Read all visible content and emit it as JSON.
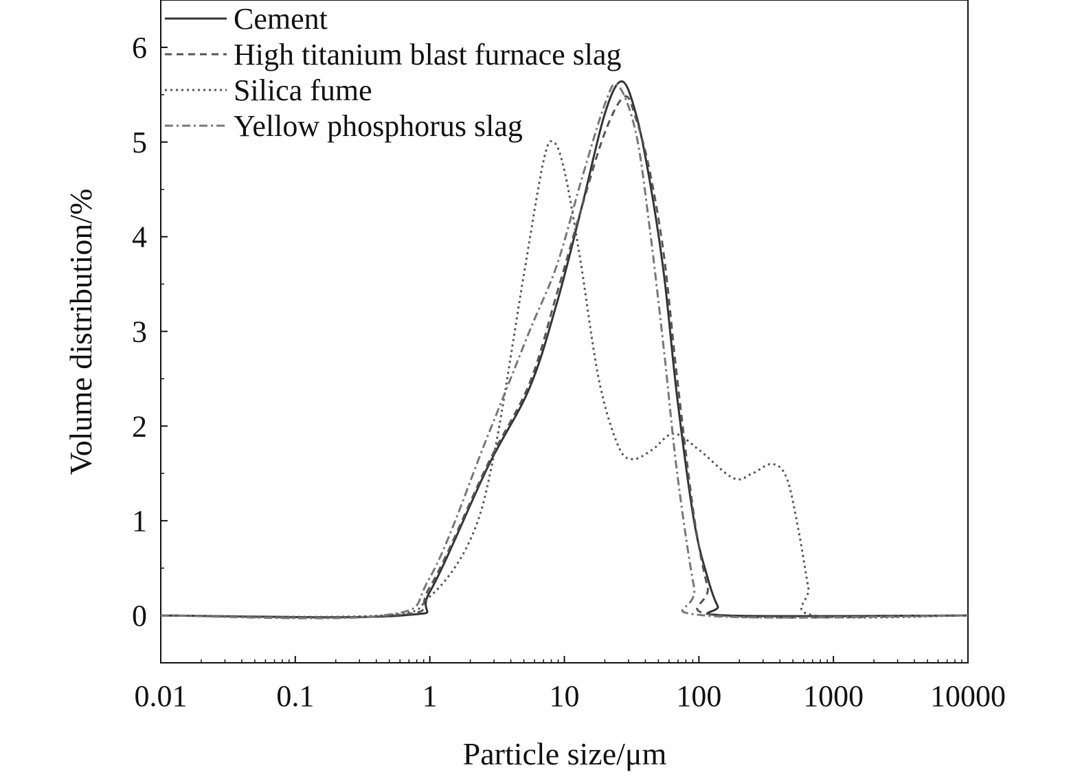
{
  "chart_data": {
    "type": "line",
    "title": "",
    "xlabel": "Particle size/μm",
    "ylabel": "Volume distribution/%",
    "xscale": "log",
    "xlim": [
      0.01,
      10000
    ],
    "ylim": [
      -0.5,
      6.5
    ],
    "xticks": [
      0.01,
      0.1,
      1,
      10,
      100,
      1000,
      10000
    ],
    "xtick_labels": [
      "0.01",
      "0.1",
      "1",
      "10",
      "100",
      "1000",
      "10000"
    ],
    "yticks": [
      0,
      1,
      2,
      3,
      4,
      5,
      6
    ],
    "ytick_labels": [
      "0",
      "1",
      "2",
      "3",
      "4",
      "5",
      "6"
    ],
    "grid": false,
    "legend_position": "top-left",
    "series": [
      {
        "name": "Cement",
        "style": "solid",
        "color": "#333333",
        "x": [
          0.01,
          0.62,
          1,
          2.7,
          5.5,
          8.8,
          13.4,
          20,
          26.7,
          34,
          43,
          55,
          69,
          92,
          116,
          138,
          165,
          10000
        ],
        "y": [
          0,
          0,
          0.25,
          1.57,
          2.4,
          3.3,
          4.3,
          5.3,
          5.64,
          5.3,
          4.6,
          3.6,
          2.3,
          1.0,
          0.4,
          0.1,
          0,
          0
        ]
      },
      {
        "name": "High titanium blast furnace slag",
        "style": "dashed",
        "color": "#555555",
        "x": [
          0.01,
          0.55,
          1,
          2.7,
          5.5,
          8.8,
          13.4,
          20,
          28,
          34,
          43,
          55,
          69,
          92,
          116,
          140,
          10000
        ],
        "y": [
          0,
          0,
          0.3,
          1.6,
          2.45,
          3.4,
          4.3,
          5.1,
          5.48,
          5.25,
          4.7,
          3.8,
          2.5,
          1.05,
          0.3,
          0,
          0
        ]
      },
      {
        "name": "Silica fume",
        "style": "dotted",
        "color": "#555555",
        "x": [
          0.01,
          0.45,
          1,
          2,
          3,
          5,
          7,
          8.3,
          10,
          13,
          18,
          25,
          32,
          45,
          65,
          100,
          180,
          250,
          350,
          450,
          550,
          650,
          720,
          10000
        ],
        "y": [
          0,
          0,
          0.2,
          0.8,
          1.7,
          3.6,
          4.8,
          5.0,
          4.7,
          3.8,
          2.5,
          1.8,
          1.65,
          1.75,
          1.92,
          1.75,
          1.45,
          1.5,
          1.6,
          1.45,
          0.9,
          0.3,
          0,
          0
        ]
      },
      {
        "name": "Yellow phosphorus slag",
        "style": "dashdot",
        "color": "#777777",
        "x": [
          0.01,
          0.45,
          1,
          2.7,
          5.5,
          8.8,
          13.4,
          20,
          25,
          34,
          43,
          55,
          69,
          92,
          110,
          10000
        ],
        "y": [
          0,
          0,
          0.4,
          1.9,
          3.0,
          3.7,
          4.6,
          5.4,
          5.6,
          5.1,
          4.1,
          2.8,
          1.5,
          0.3,
          0,
          0
        ]
      }
    ]
  }
}
